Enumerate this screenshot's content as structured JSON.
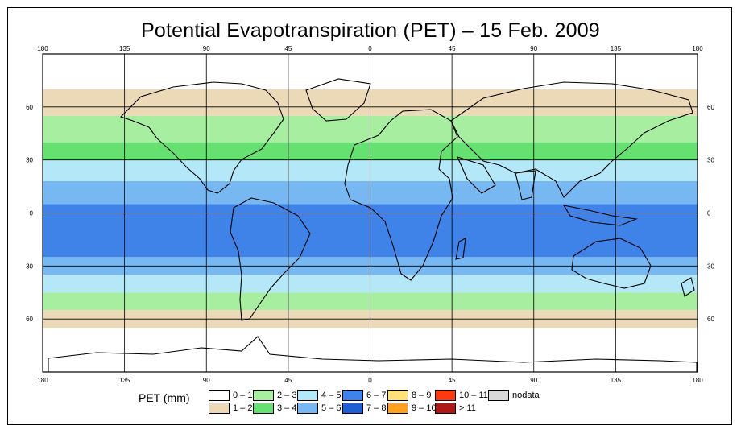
{
  "title": "Potential Evapotranspiration (PET) – 15 Feb. 2009",
  "map": {
    "type": "global raster map",
    "top_lon_labels": [
      "180",
      "135",
      "90",
      "45",
      "0",
      "45",
      "90",
      "135",
      "180"
    ],
    "bottom_lon_labels": [
      "180",
      "135",
      "90",
      "45",
      "0",
      "45",
      "90",
      "135",
      "180"
    ],
    "left_lat_labels": [
      "60",
      "30",
      "0",
      "30",
      "60"
    ],
    "right_lat_labels": [
      "60",
      "30",
      "0",
      "30",
      "60"
    ],
    "grid": true,
    "lat_bands": [
      {
        "lat_from": 90,
        "lat_to": 70,
        "class": "0-1"
      },
      {
        "lat_from": 70,
        "lat_to": 55,
        "class": "1-2"
      },
      {
        "lat_from": 55,
        "lat_to": 40,
        "class": "2-3"
      },
      {
        "lat_from": 40,
        "lat_to": 30,
        "class": "3-4"
      },
      {
        "lat_from": 30,
        "lat_to": 18,
        "class": "4-5"
      },
      {
        "lat_from": 18,
        "lat_to": 5,
        "class": "5-6"
      },
      {
        "lat_from": 5,
        "lat_to": -25,
        "class": "6-7"
      },
      {
        "lat_from": -25,
        "lat_to": -35,
        "class": "5-6"
      },
      {
        "lat_from": -35,
        "lat_to": -45,
        "class": "4-5"
      },
      {
        "lat_from": -45,
        "lat_to": -55,
        "class": "2-3"
      },
      {
        "lat_from": -55,
        "lat_to": -65,
        "class": "1-2"
      },
      {
        "lat_from": -65,
        "lat_to": -90,
        "class": "0-1"
      }
    ]
  },
  "legend": {
    "title": "PET (mm)",
    "items": [
      {
        "label": "0 – 1",
        "color": "#ffffff"
      },
      {
        "label": "1 – 2",
        "color": "#ecd9b7"
      },
      {
        "label": "2 – 3",
        "color": "#a8eea0"
      },
      {
        "label": "3 – 4",
        "color": "#66e070"
      },
      {
        "label": "4 – 5",
        "color": "#b4e8f8"
      },
      {
        "label": "5 – 6",
        "color": "#78b8f2"
      },
      {
        "label": "6 – 7",
        "color": "#3f82e8"
      },
      {
        "label": "7 – 8",
        "color": "#1e5fd6"
      },
      {
        "label": "8 – 9",
        "color": "#ffe07a"
      },
      {
        "label": "9 – 10",
        "color": "#ffa020"
      },
      {
        "label": "10 – 11",
        "color": "#ff3a10"
      },
      {
        "label": "> 11",
        "color": "#b01818"
      },
      {
        "label": "nodata",
        "color": "#d9d9d9"
      }
    ]
  }
}
